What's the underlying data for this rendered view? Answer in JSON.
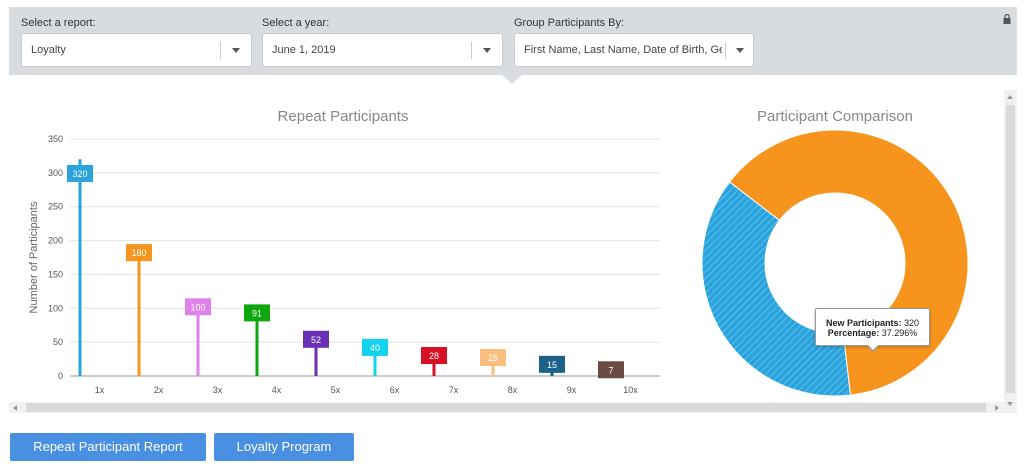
{
  "filters": {
    "report": {
      "label": "Select a report:",
      "value": "Loyalty"
    },
    "year": {
      "label": "Select a year:",
      "value": "June 1, 2019"
    },
    "group": {
      "label": "Group Participants By:",
      "value": "First Name, Last Name, Date of Birth, Ger"
    }
  },
  "left_panel": {
    "title": "Repeat Participants"
  },
  "right_panel": {
    "title": "Participant Comparison"
  },
  "tooltip": {
    "new_label": "New Participants:",
    "new_value": "320",
    "pct_label": "Percentage:",
    "pct_value": "37.296%"
  },
  "buttons": {
    "repeat_report": "Repeat Participant Report",
    "loyalty_program": "Loyalty Program"
  },
  "icons": {
    "lock": "lock-icon",
    "caret": "chevron-down-icon"
  },
  "chart_data": [
    {
      "type": "bar",
      "title": "Repeat Participants",
      "ylabel": "Number of Participants",
      "xlabel": "",
      "categories": [
        "1x",
        "2x",
        "3x",
        "4x",
        "5x",
        "6x",
        "7x",
        "8x",
        "9x",
        "10x"
      ],
      "values": [
        320,
        180,
        100,
        91,
        52,
        40,
        28,
        25,
        15,
        7
      ],
      "colors": [
        "#2aa3dc",
        "#f7941d",
        "#df82ec",
        "#0fa60f",
        "#6a2fb5",
        "#12d2ee",
        "#d61124",
        "#f9be80",
        "#1b6189",
        "#6b4c42"
      ],
      "ylim": [
        0,
        350
      ],
      "yticks": [
        0,
        50,
        100,
        150,
        200,
        250,
        300,
        350
      ],
      "grid": true
    },
    {
      "type": "pie",
      "title": "Participant Comparison",
      "donut": true,
      "slices": [
        {
          "name": "New Participants",
          "value": 320,
          "percent": 37.296,
          "color": "#2aa3dc"
        },
        {
          "value": 538,
          "percent": 62.704,
          "color": "#f7941d"
        }
      ]
    }
  ]
}
